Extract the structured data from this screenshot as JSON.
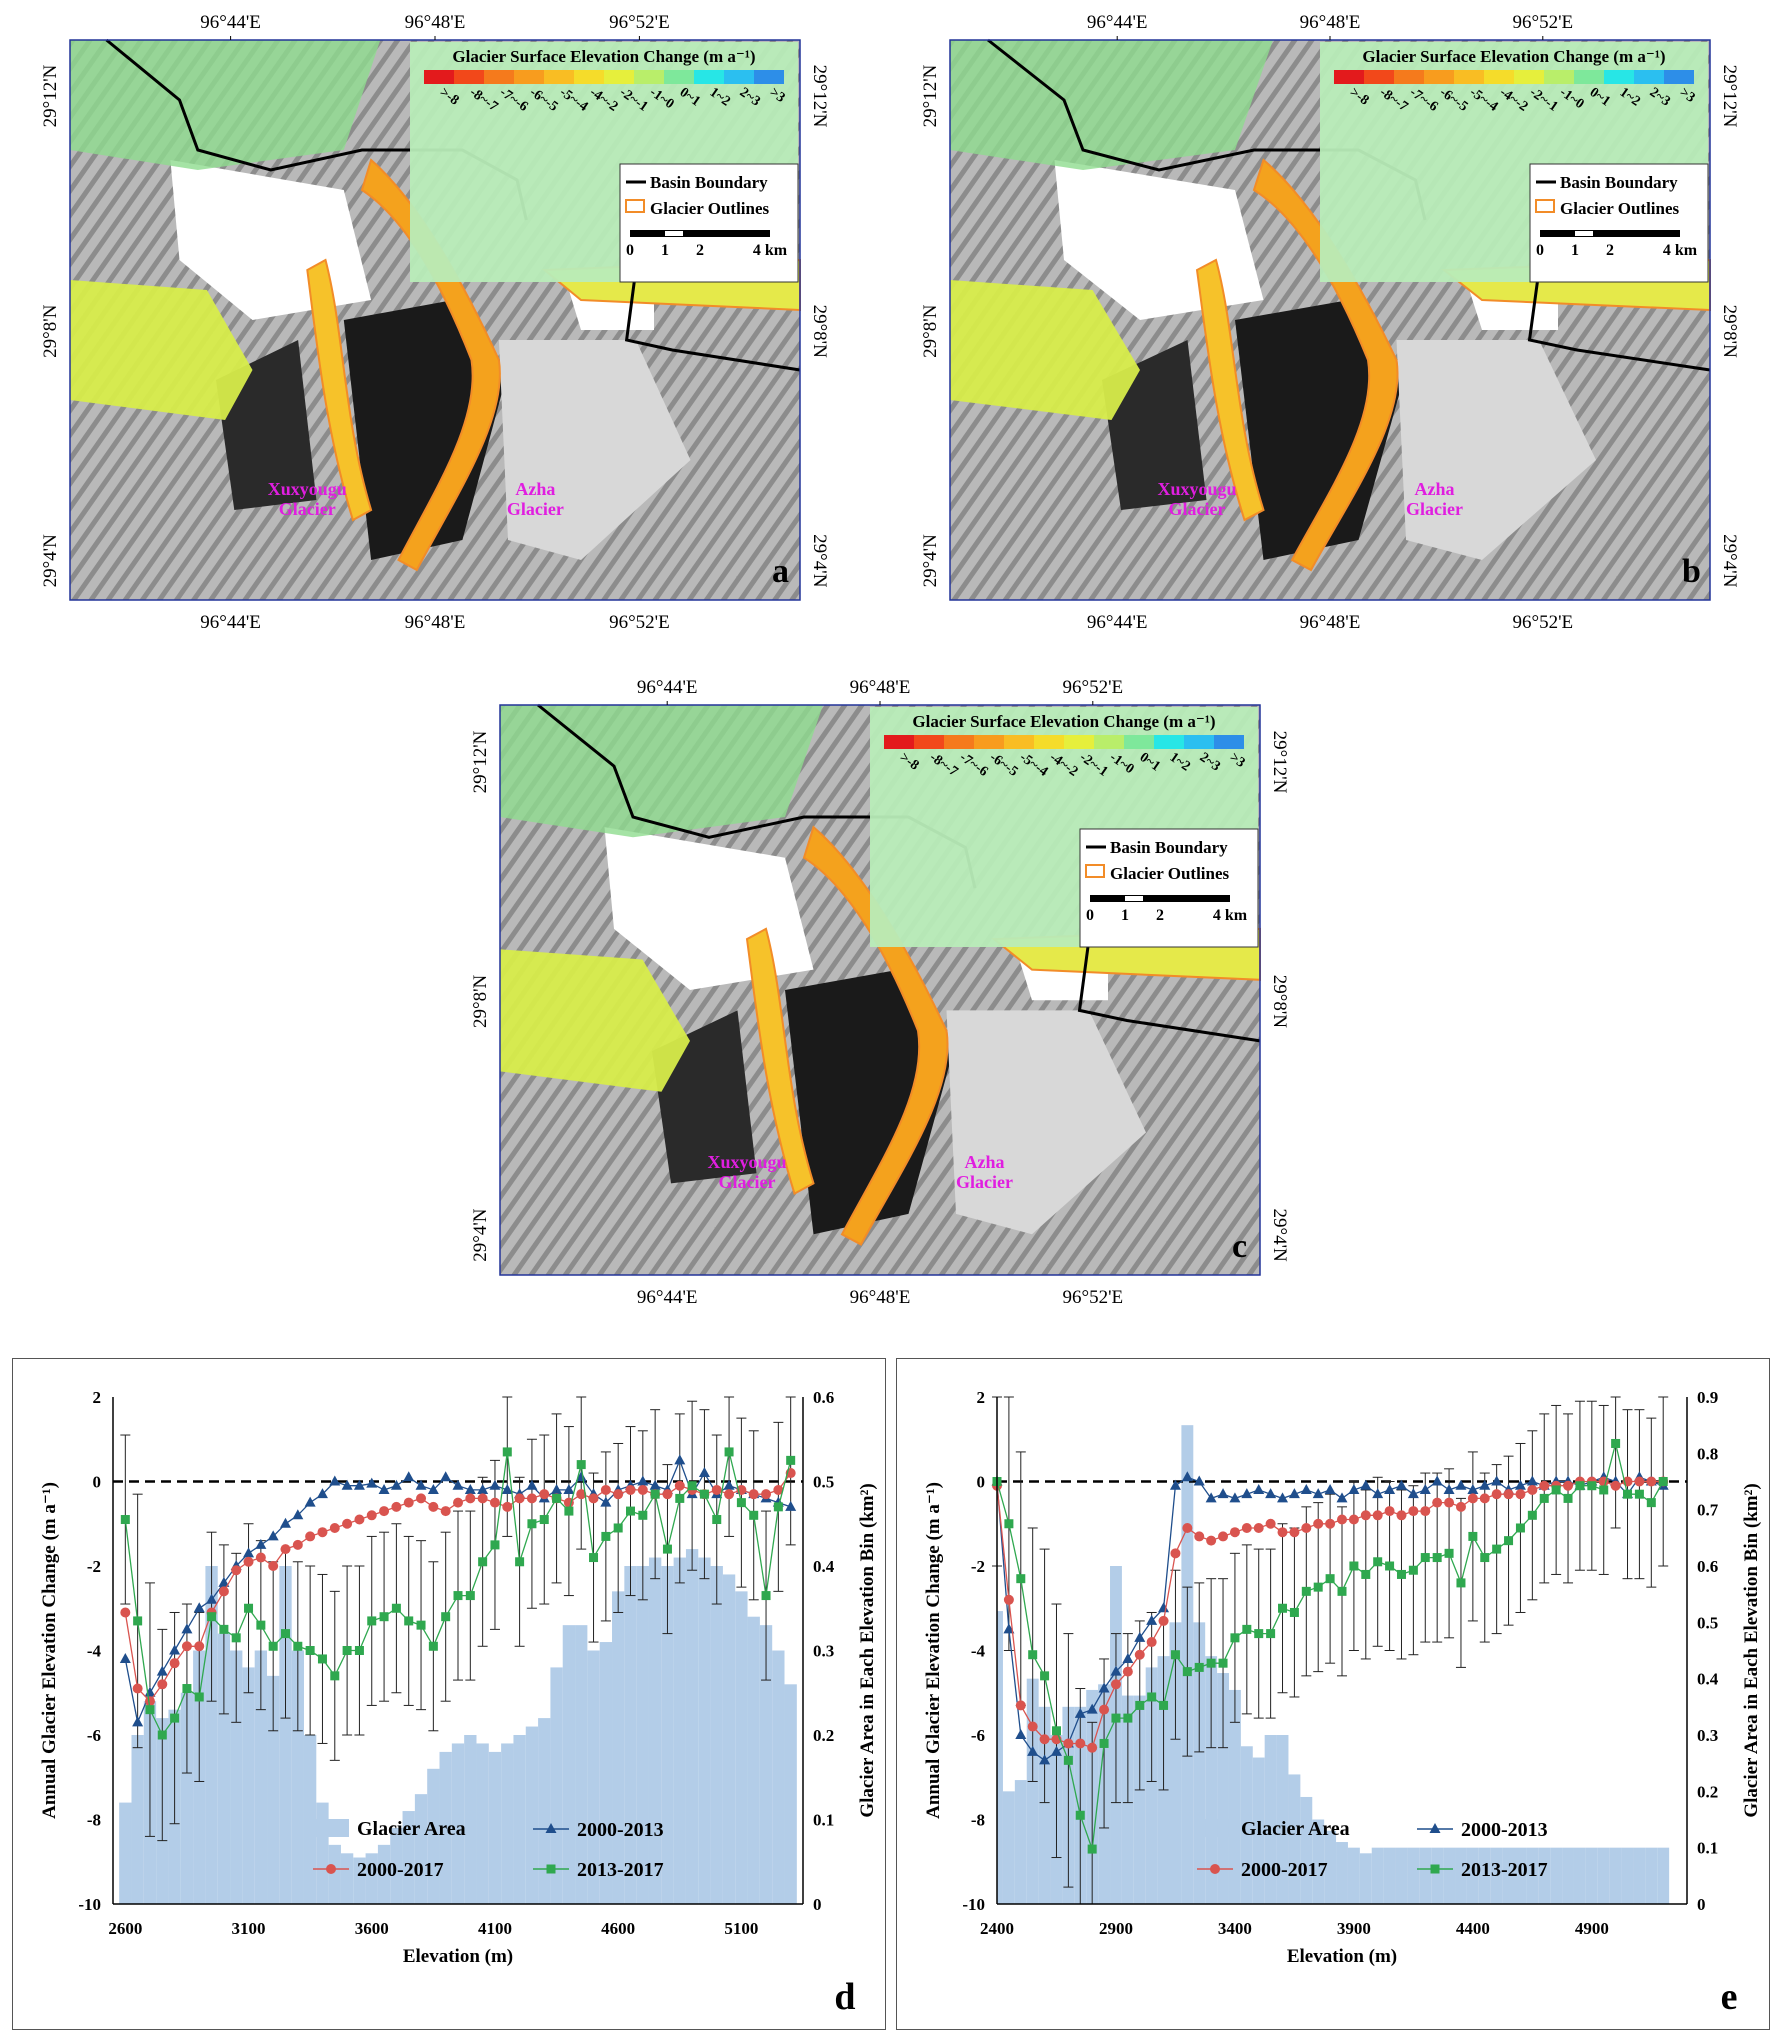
{
  "maps": [
    {
      "id": "a",
      "panel_label": "a",
      "top_lon_labels": [
        "96°44'E",
        "96°48'E",
        "96°52'E"
      ],
      "bottom_lon_labels": [
        "96°44'E",
        "96°48'E",
        "96°52'E"
      ],
      "left_lat_labels": [
        "29°12'N",
        "29°8'N",
        "29°4'N"
      ],
      "right_lat_labels": [
        "29°12'N",
        "29°8'N",
        "29°4'N"
      ]
    },
    {
      "id": "b",
      "panel_label": "b",
      "top_lon_labels": [
        "96°44'E",
        "96°48'E",
        "96°52'E"
      ],
      "bottom_lon_labels": [
        "96°44'E",
        "96°48'E",
        "96°52'E"
      ],
      "left_lat_labels": [
        "29°12'N",
        "29°8'N",
        "29°4'N"
      ],
      "right_lat_labels": [
        "29°12'N",
        "29°8'N",
        "29°4'N"
      ]
    },
    {
      "id": "c",
      "panel_label": "c",
      "top_lon_labels": [
        "96°44'E",
        "96°48'E",
        "96°52'E"
      ],
      "bottom_lon_labels": [
        "96°44'E",
        "96°48'E",
        "96°52'E"
      ],
      "left_lat_labels": [
        "29°12'N",
        "29°8'N",
        "29°4'N"
      ],
      "right_lat_labels": [
        "29°12'N",
        "29°8'N",
        "29°4'N"
      ]
    }
  ],
  "map_legend": {
    "title": "Glacier Surface Elevation Change (m a⁻¹)",
    "class_labels": [
      ">-8",
      "-8~-7",
      "-7~-6",
      "-6~-5",
      "-5~-4",
      "-4~-2",
      "-2~-1",
      "-1~0",
      "0~1",
      "1~2",
      "2~3",
      ">3"
    ],
    "class_colors": [
      "#e31a1c",
      "#f2481a",
      "#f57a1c",
      "#f89c1e",
      "#f9bd23",
      "#f5dc2a",
      "#e6ef3c",
      "#b9ee6a",
      "#7ee89b",
      "#27e6e6",
      "#2bbff0",
      "#2d8ee8"
    ],
    "basin_boundary_label": "Basin Boundary",
    "glacier_outlines_label": "Glacier Outlines",
    "scale_labels": [
      "0",
      "1",
      "2",
      "4 km"
    ]
  },
  "glacier_names": {
    "xuxi": [
      "Xuxyougu",
      "Glacier"
    ],
    "azha": [
      "Azha",
      "Glacier"
    ]
  },
  "colors": {
    "area": "#b3cde8",
    "s2000_2013": "#1f4e8c",
    "s2000_2017": "#d9544f",
    "s2013_2017": "#2fa84f",
    "label_magenta": "#e01ee0",
    "basin": "#000000",
    "outline": "#f28c28"
  },
  "chart_data": [
    {
      "panel_label": "d",
      "type": "line",
      "xlabel": "Elevation (m)",
      "ylabel": "Annual Glacier Elevation Change (m a⁻¹)",
      "y2label": "Glacier Area in Each Elevation Bin (km²)",
      "xlim": [
        2550,
        5350
      ],
      "ylim": [
        -10,
        2
      ],
      "y2lim": [
        0,
        0.6
      ],
      "xticks": [
        2600,
        3100,
        3600,
        4100,
        4600,
        5100
      ],
      "yticks": [
        2,
        0,
        -2,
        -4,
        -6,
        -8,
        -10
      ],
      "y2ticks": [
        0.6,
        0.5,
        0.4,
        0.3,
        0.2,
        0.1,
        0
      ],
      "legend_position": "bottom-right",
      "x": [
        2600,
        2650,
        2700,
        2750,
        2800,
        2850,
        2900,
        2950,
        3000,
        3050,
        3100,
        3150,
        3200,
        3250,
        3300,
        3350,
        3400,
        3450,
        3500,
        3550,
        3600,
        3650,
        3700,
        3750,
        3800,
        3850,
        3900,
        3950,
        4000,
        4050,
        4100,
        4150,
        4200,
        4250,
        4300,
        4350,
        4400,
        4450,
        4500,
        4550,
        4600,
        4650,
        4700,
        4750,
        4800,
        4850,
        4900,
        4950,
        5000,
        5050,
        5100,
        5150,
        5200,
        5250,
        5300
      ],
      "series": [
        {
          "name": "Glacier Area",
          "kind": "bar",
          "axis": "y2",
          "values": [
            0.12,
            0.2,
            0.24,
            0.22,
            0.23,
            0.25,
            0.3,
            0.4,
            0.32,
            0.3,
            0.28,
            0.3,
            0.27,
            0.4,
            0.3,
            0.2,
            0.12,
            0.07,
            0.06,
            0.055,
            0.06,
            0.07,
            0.09,
            0.11,
            0.13,
            0.16,
            0.18,
            0.19,
            0.2,
            0.19,
            0.18,
            0.19,
            0.2,
            0.21,
            0.22,
            0.28,
            0.33,
            0.33,
            0.3,
            0.31,
            0.37,
            0.4,
            0.4,
            0.41,
            0.4,
            0.41,
            0.42,
            0.41,
            0.4,
            0.39,
            0.37,
            0.34,
            0.33,
            0.3,
            0.26
          ]
        },
        {
          "name": "2000-2013",
          "kind": "line",
          "axis": "y",
          "values": [
            -4.2,
            -5.7,
            -5,
            -4.5,
            -4,
            -3.5,
            -3,
            -2.8,
            -2.4,
            -2,
            -1.7,
            -1.5,
            -1.3,
            -1,
            -0.8,
            -0.5,
            -0.3,
            0,
            -0.1,
            -0.1,
            -0.05,
            -0.2,
            -0.1,
            0.1,
            -0.1,
            -0.2,
            0.1,
            -0.1,
            -0.2,
            -0.2,
            -0.1,
            -0.2,
            -0.3,
            -0.1,
            -0.4,
            -0.2,
            -0.2,
            0.1,
            -0.3,
            -0.5,
            -0.2,
            -0.1,
            0,
            -0.1,
            -0.2,
            0.5,
            -0.3,
            0.2,
            -0.3,
            -0.1,
            -0.2,
            -0.3,
            -0.4,
            -0.5,
            -0.6
          ]
        },
        {
          "name": "2000-2017",
          "kind": "line",
          "axis": "y",
          "values": [
            -3.1,
            -4.9,
            -5.2,
            -4.8,
            -4.3,
            -3.9,
            -3.9,
            -3.1,
            -2.6,
            -2.1,
            -1.9,
            -1.8,
            -2,
            -1.6,
            -1.5,
            -1.3,
            -1.2,
            -1.1,
            -1,
            -0.9,
            -0.8,
            -0.7,
            -0.6,
            -0.5,
            -0.4,
            -0.6,
            -0.7,
            -0.5,
            -0.4,
            -0.4,
            -0.5,
            -0.6,
            -0.4,
            -0.4,
            -0.3,
            -0.4,
            -0.5,
            -0.3,
            -0.4,
            -0.2,
            -0.3,
            -0.2,
            -0.2,
            -0.3,
            -0.3,
            -0.1,
            -0.2,
            -0.3,
            -0.2,
            -0.3,
            -0.2,
            -0.3,
            -0.3,
            -0.2,
            0.2
          ]
        },
        {
          "name": "2013-2017",
          "kind": "line",
          "axis": "y",
          "values": [
            -0.9,
            -3.3,
            -5.4,
            -6,
            -5.6,
            -4.9,
            -5.1,
            -3.2,
            -3.5,
            -3.7,
            -3,
            -3.4,
            -3.9,
            -3.6,
            -3.9,
            -4,
            -4.2,
            -4.6,
            -4,
            -4,
            -3.3,
            -3.2,
            -3,
            -3.3,
            -3.4,
            -3.9,
            -3.2,
            -2.7,
            -2.7,
            -1.9,
            -1.5,
            0.7,
            -1.9,
            -1,
            -0.9,
            -0.4,
            -0.7,
            0.4,
            -1.8,
            -1.3,
            -1.1,
            -0.7,
            -0.8,
            -0.3,
            -1.6,
            -0.4,
            -0.1,
            -0.3,
            -0.9,
            0.7,
            -0.5,
            -0.8,
            -2.7,
            -0.6,
            0.5
          ]
        }
      ],
      "error_bars_2013_2017": [
        2,
        3,
        3,
        2.5,
        2.5,
        2,
        2,
        2,
        2,
        2,
        2,
        2,
        2,
        2,
        2,
        2,
        2,
        2,
        2,
        2,
        2,
        2,
        2,
        2,
        2,
        2,
        2,
        2,
        2,
        2,
        2,
        2,
        2,
        2,
        2,
        2,
        2,
        2,
        2,
        2,
        2,
        2,
        2,
        2,
        2,
        2,
        2,
        2,
        2,
        2,
        2,
        2,
        2,
        2,
        2
      ]
    },
    {
      "panel_label": "e",
      "type": "line",
      "xlabel": "Elevation (m)",
      "ylabel": "Annual Glacier Elevation Change (m a⁻¹)",
      "y2label": "Glacier Area in Each Elevation Bin (km²)",
      "xlim": [
        2400,
        5300
      ],
      "ylim": [
        -10,
        2
      ],
      "y2lim": [
        0,
        0.9
      ],
      "xticks": [
        2400,
        2900,
        3400,
        3900,
        4400,
        4900
      ],
      "yticks": [
        2,
        0,
        -2,
        -4,
        -6,
        -8,
        -10
      ],
      "y2ticks": [
        0.9,
        0.8,
        0.7,
        0.6,
        0.5,
        0.4,
        0.3,
        0.2,
        0.1,
        0
      ],
      "legend_position": "bottom-right",
      "x": [
        2400,
        2450,
        2500,
        2550,
        2600,
        2650,
        2700,
        2750,
        2800,
        2850,
        2900,
        2950,
        3000,
        3050,
        3100,
        3150,
        3200,
        3250,
        3300,
        3350,
        3400,
        3450,
        3500,
        3550,
        3600,
        3650,
        3700,
        3750,
        3800,
        3850,
        3900,
        3950,
        4000,
        4050,
        4100,
        4150,
        4200,
        4250,
        4300,
        4350,
        4400,
        4450,
        4500,
        4550,
        4600,
        4650,
        4700,
        4750,
        4800,
        4850,
        4900,
        4950,
        5000,
        5050,
        5100,
        5150,
        5200
      ],
      "series": [
        {
          "name": "Glacier Area",
          "kind": "bar",
          "axis": "y2",
          "values": [
            0.52,
            0.2,
            0.22,
            0.4,
            0.35,
            0.3,
            0.35,
            0.35,
            0.38,
            0.39,
            0.6,
            0.37,
            0.37,
            0.42,
            0.44,
            0.5,
            0.85,
            0.5,
            0.44,
            0.41,
            0.38,
            0.28,
            0.26,
            0.3,
            0.3,
            0.23,
            0.19,
            0.15,
            0.13,
            0.11,
            0.1,
            0.09,
            0.1,
            0.1,
            0.1,
            0.1,
            0.1,
            0.1,
            0.1,
            0.1,
            0.1,
            0.1,
            0.1,
            0.1,
            0.1,
            0.1,
            0.1,
            0.1,
            0.1,
            0.1,
            0.1,
            0.1,
            0.1,
            0.1,
            0.1,
            0.1,
            0.1
          ]
        },
        {
          "name": "2000-2013",
          "kind": "line",
          "axis": "y",
          "values": [
            0,
            -3.5,
            -6,
            -6.4,
            -6.6,
            -6.4,
            -6.2,
            -5.5,
            -5.4,
            -4.9,
            -4.5,
            -4.2,
            -3.7,
            -3.3,
            -3,
            -0.1,
            0.1,
            0,
            -0.4,
            -0.3,
            -0.4,
            -0.3,
            -0.2,
            -0.3,
            -0.4,
            -0.3,
            -0.2,
            -0.3,
            -0.2,
            -0.4,
            -0.2,
            -0.1,
            -0.3,
            -0.2,
            -0.1,
            -0.3,
            -0.2,
            0,
            -0.2,
            -0.1,
            -0.2,
            -0.1,
            0,
            -0.2,
            -0.1,
            0,
            -0.1,
            0,
            0,
            -0.1,
            0,
            0.1,
            0,
            -0.3,
            0.1,
            0,
            -0.1
          ]
        },
        {
          "name": "2000-2017",
          "kind": "line",
          "axis": "y",
          "values": [
            -0.1,
            -2.8,
            -5.3,
            -5.8,
            -6.1,
            -6.1,
            -6.2,
            -6.2,
            -6.3,
            -5.4,
            -4.8,
            -4.5,
            -4.1,
            -3.8,
            -3.3,
            -1.7,
            -1.1,
            -1.3,
            -1.4,
            -1.3,
            -1.2,
            -1.1,
            -1.1,
            -1,
            -1.2,
            -1.2,
            -1.1,
            -1,
            -1,
            -0.9,
            -0.9,
            -0.8,
            -0.8,
            -0.7,
            -0.8,
            -0.7,
            -0.7,
            -0.5,
            -0.5,
            -0.6,
            -0.4,
            -0.4,
            -0.3,
            -0.3,
            -0.3,
            -0.2,
            -0.1,
            -0.1,
            -0.1,
            0,
            0,
            0,
            -0.1,
            0,
            0,
            0,
            0
          ]
        },
        {
          "name": "2013-2017",
          "kind": "line",
          "axis": "y",
          "values": [
            0,
            -1,
            -2.3,
            -4.1,
            -4.6,
            -5.9,
            -6.6,
            -7.9,
            -8.7,
            -6.2,
            -5.6,
            -5.6,
            -5.3,
            -5.1,
            -5.3,
            -4.1,
            -4.5,
            -4.4,
            -4.3,
            -4.3,
            -3.7,
            -3.5,
            -3.6,
            -3.6,
            -3,
            -3.1,
            -2.6,
            -2.5,
            -2.3,
            -2.6,
            -2,
            -2.2,
            -1.9,
            -2,
            -2.2,
            -2.1,
            -1.8,
            -1.8,
            -1.7,
            -2.4,
            -1.3,
            -1.8,
            -1.6,
            -1.4,
            -1.1,
            -0.8,
            -0.4,
            -0.2,
            -0.4,
            -0.1,
            -0.1,
            -0.2,
            0.9,
            -0.3,
            -0.3,
            -0.5,
            0
          ]
        }
      ],
      "error_bars_2013_2017": [
        2,
        3,
        3,
        3,
        3,
        3,
        3,
        3,
        3,
        2,
        2,
        2,
        2,
        2,
        2,
        2,
        2,
        2,
        2,
        2,
        2,
        2,
        2,
        2,
        2,
        2,
        2,
        2,
        2,
        2,
        2,
        2,
        2,
        2,
        2,
        2,
        2,
        2,
        2,
        2,
        2,
        2,
        2,
        2,
        2,
        2,
        2,
        2,
        2,
        2,
        2,
        2,
        2,
        2,
        2,
        2,
        2
      ]
    }
  ]
}
